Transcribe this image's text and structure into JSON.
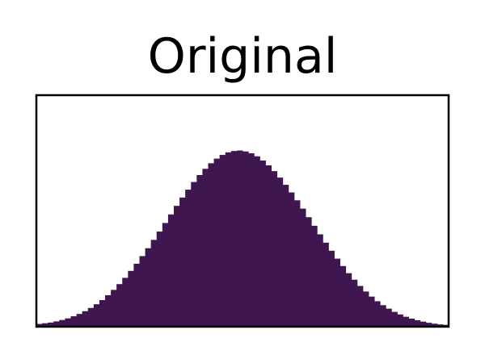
{
  "chart_data": {
    "type": "bar",
    "title": "Original",
    "xlabel": "",
    "ylabel": "",
    "x_ticks": "none",
    "y_ticks": "none",
    "bar_color": "#3f1650",
    "ylim": [
      0,
      1
    ],
    "grid": false,
    "values": [
      0.012,
      0.015,
      0.018,
      0.023,
      0.029,
      0.036,
      0.045,
      0.055,
      0.067,
      0.081,
      0.097,
      0.115,
      0.136,
      0.159,
      0.184,
      0.211,
      0.241,
      0.272,
      0.305,
      0.339,
      0.375,
      0.411,
      0.448,
      0.485,
      0.522,
      0.558,
      0.592,
      0.625,
      0.655,
      0.682,
      0.706,
      0.726,
      0.742,
      0.753,
      0.759,
      0.761,
      0.757,
      0.749,
      0.736,
      0.718,
      0.697,
      0.672,
      0.644,
      0.613,
      0.58,
      0.546,
      0.51,
      0.473,
      0.436,
      0.399,
      0.363,
      0.328,
      0.294,
      0.262,
      0.231,
      0.203,
      0.176,
      0.152,
      0.13,
      0.11,
      0.093,
      0.078,
      0.064,
      0.053,
      0.043,
      0.035,
      0.028,
      0.022,
      0.017,
      0.013,
      0.01,
      0.008
    ]
  }
}
